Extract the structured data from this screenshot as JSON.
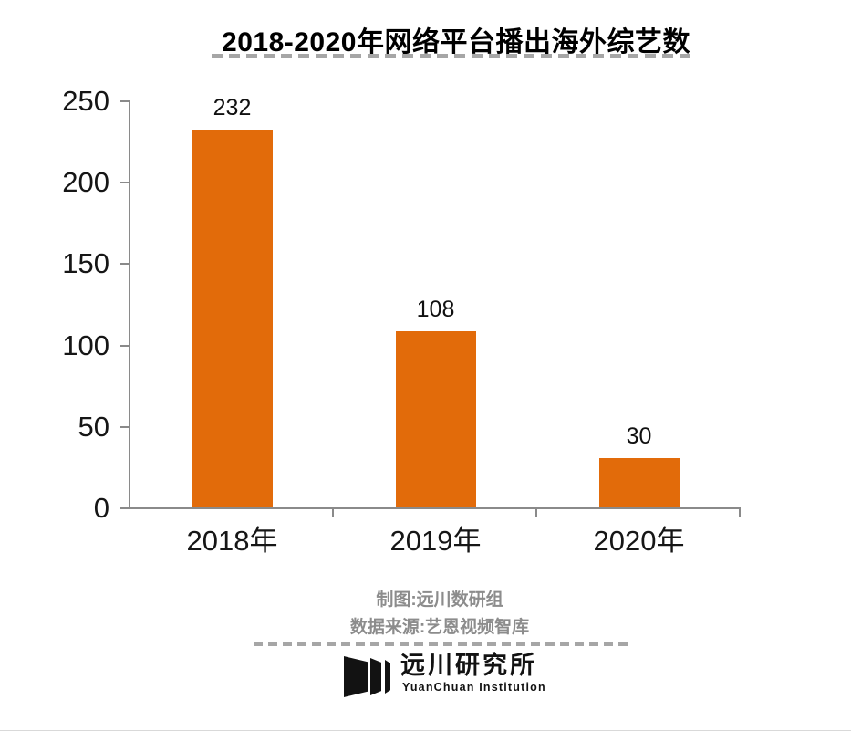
{
  "chart_data": {
    "type": "bar",
    "title": "2018-2020年网络平台播出海外综艺数",
    "categories": [
      "2018年",
      "2019年",
      "2020年"
    ],
    "values": [
      232,
      108,
      30
    ],
    "xlabel": "",
    "ylabel": "",
    "ylim": [
      0,
      250
    ],
    "yticks": [
      0,
      50,
      100,
      150,
      200,
      250
    ],
    "grid": false,
    "legend": false,
    "bar_color": "#e26b0a"
  },
  "footer": {
    "credit": "制图:远川数研组",
    "source": "数据来源:艺恩视频智库"
  },
  "logo": {
    "mark": "three-slanted-bars",
    "name_cn": "远川研究所",
    "name_en": "YuanChuan Institution"
  },
  "colors": {
    "bar": "#e26b0a",
    "axis": "#8a8a8a",
    "dashed_divider": "#a6a6a6",
    "footer_text": "#8c8c8c",
    "text": "#111111"
  }
}
